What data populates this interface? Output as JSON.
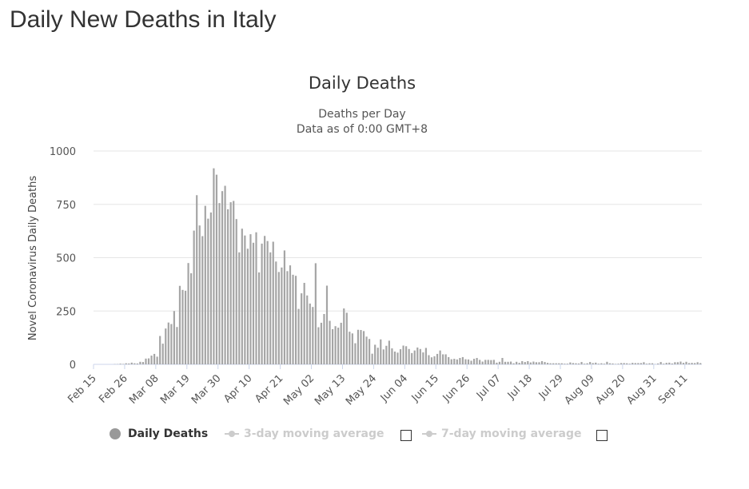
{
  "page": {
    "heading": "Daily New Deaths in Italy"
  },
  "legend": {
    "series_label": "Daily Deaths",
    "ma3_label": "3-day moving average",
    "ma7_label": "7-day moving average"
  },
  "colors": {
    "bar": "#a5a5a5",
    "grid": "#e6e6e6",
    "axis": "#ccd6eb",
    "inactive": "#cccccc"
  },
  "chart_data": {
    "type": "bar",
    "title": "Daily Deaths",
    "subtitle": [
      "Deaths per Day",
      "Data as of 0:00 GMT+8"
    ],
    "ylabel": "Novel Coronavirus Daily Deaths",
    "xlabel": "",
    "ylim": [
      0,
      1000
    ],
    "yticks": [
      0,
      250,
      500,
      750,
      1000
    ],
    "grid": true,
    "legend_position": "bottom",
    "start_date": "Feb 15",
    "tick_labels": [
      "Feb 15",
      "Feb 26",
      "Mar 08",
      "Mar 19",
      "Mar 30",
      "Apr 10",
      "Apr 21",
      "May 02",
      "May 13",
      "May 24",
      "Jun 04",
      "Jun 15",
      "Jun 26",
      "Jul 07",
      "Jul 18",
      "Jul 29",
      "Aug 09",
      "Aug 20",
      "Aug 31",
      "Sep 11"
    ],
    "series": [
      {
        "name": "Daily Deaths",
        "values": [
          0,
          0,
          0,
          0,
          0,
          0,
          0,
          1,
          1,
          3,
          2,
          5,
          4,
          8,
          5,
          4,
          12,
          11,
          27,
          28,
          41,
          49,
          36,
          133,
          97,
          168,
          196,
          189,
          250,
          175,
          368,
          349,
          345,
          475,
          427,
          627,
          793,
          651,
          601,
          743,
          683,
          712,
          919,
          889,
          756,
          812,
          837,
          727,
          760,
          766,
          681,
          525,
          636,
          604,
          542,
          610,
          570,
          619,
          431,
          566,
          602,
          578,
          525,
          575,
          482,
          433,
          454,
          534,
          437,
          464,
          420,
          415,
          260,
          333,
          382,
          323,
          285,
          269,
          474,
          174,
          195,
          236,
          369,
          204,
          165,
          179,
          172,
          195,
          262,
          242,
          153,
          145,
          99,
          162,
          161,
          156,
          130,
          119,
          50,
          92,
          78,
          117,
          70,
          87,
          111,
          75,
          60,
          55,
          71,
          88,
          85,
          72,
          53,
          65,
          79,
          72,
          56,
          77,
          43,
          33,
          38,
          49,
          65,
          47,
          47,
          34,
          24,
          26,
          23,
          30,
          34,
          24,
          23,
          17,
          26,
          30,
          21,
          13,
          21,
          21,
          20,
          21,
          8,
          12,
          30,
          12,
          12,
          13,
          5,
          12,
          7,
          15,
          11,
          15,
          9,
          13,
          10,
          10,
          15,
          11,
          7,
          5,
          5,
          5,
          5,
          5,
          3,
          3,
          9,
          6,
          5,
          4,
          11,
          3,
          5,
          11,
          6,
          8,
          3,
          5,
          3,
          12,
          5,
          4,
          2,
          3,
          6,
          6,
          5,
          3,
          7,
          6,
          6,
          6,
          10,
          3,
          5,
          5,
          1,
          4,
          11,
          3,
          7,
          8,
          4,
          10,
          10,
          13,
          7,
          12,
          6,
          7,
          6,
          10,
          6
        ]
      }
    ]
  }
}
